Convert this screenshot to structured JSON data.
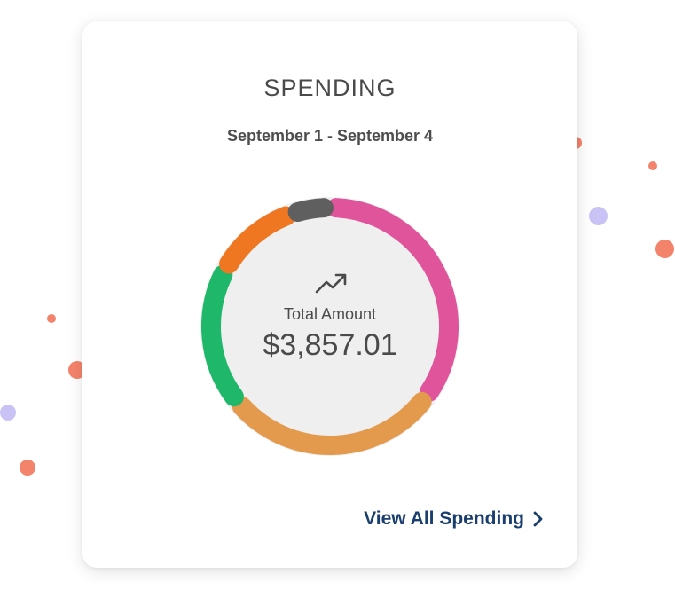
{
  "card": {
    "title": "SPENDING",
    "date_range": "September 1 - September 4"
  },
  "summary": {
    "icon": "trending-up-icon",
    "total_label": "Total Amount",
    "total_value": "$3,857.01"
  },
  "donut": {
    "track_color": "#efefef",
    "segments": [
      {
        "color": "#e0549c",
        "share": 0.33
      },
      {
        "color": "#e39a4d",
        "share": 0.27
      },
      {
        "color": "#1fb86a",
        "share": 0.17
      },
      {
        "color": "#f07722",
        "share": 0.1
      },
      {
        "color": "#5f5f5f",
        "share": 0.035
      }
    ]
  },
  "footer": {
    "link_label": "View All Spending",
    "link_icon": "chevron-right-icon",
    "link_color": "#1a3e6e"
  },
  "decor": {
    "dot_colors": [
      "#f4836b",
      "#c9c3f5"
    ]
  }
}
